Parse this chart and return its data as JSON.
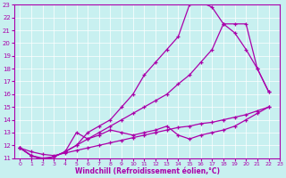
{
  "xlabel": "Windchill (Refroidissement éolien,°C)",
  "bg_color": "#c8f0f0",
  "line_color": "#aa00aa",
  "xlim": [
    -0.5,
    23
  ],
  "ylim": [
    11,
    23
  ],
  "xticks": [
    0,
    1,
    2,
    3,
    4,
    5,
    6,
    7,
    8,
    9,
    10,
    11,
    12,
    13,
    14,
    15,
    16,
    17,
    18,
    19,
    20,
    21,
    22,
    23
  ],
  "yticks": [
    11,
    12,
    13,
    14,
    15,
    16,
    17,
    18,
    19,
    20,
    21,
    22,
    23
  ],
  "lines": [
    {
      "x": [
        0,
        1,
        2,
        3,
        4,
        5,
        6,
        7,
        8,
        9,
        10,
        11,
        12,
        13,
        14,
        15,
        16,
        17,
        18,
        19,
        20,
        21,
        22
      ],
      "y": [
        11.8,
        11.5,
        11.3,
        11.2,
        11.4,
        11.6,
        11.8,
        12.0,
        12.2,
        12.4,
        12.6,
        12.8,
        13.0,
        13.2,
        13.4,
        13.5,
        13.7,
        13.8,
        14.0,
        14.2,
        14.4,
        14.7,
        15.0
      ]
    },
    {
      "x": [
        0,
        1,
        2,
        3,
        4,
        5,
        6,
        7,
        8,
        9,
        10,
        11,
        12,
        13,
        14,
        15,
        16,
        17,
        18,
        19,
        20,
        21,
        22
      ],
      "y": [
        11.8,
        11.2,
        10.9,
        11.1,
        11.5,
        13.0,
        12.5,
        12.8,
        13.2,
        13.0,
        12.8,
        13.0,
        13.2,
        13.5,
        12.8,
        12.5,
        12.8,
        13.0,
        13.2,
        13.5,
        14.0,
        14.5,
        15.0
      ]
    },
    {
      "x": [
        0,
        1,
        2,
        3,
        4,
        5,
        6,
        7,
        8,
        9,
        10,
        11,
        12,
        13,
        14,
        15,
        16,
        17,
        18,
        19,
        20,
        21,
        22
      ],
      "y": [
        11.8,
        11.2,
        11.0,
        11.1,
        11.5,
        12.0,
        12.5,
        13.0,
        13.5,
        14.0,
        14.5,
        15.0,
        15.5,
        16.0,
        16.8,
        17.5,
        18.5,
        19.5,
        21.5,
        21.5,
        21.5,
        18.0,
        16.2
      ]
    },
    {
      "x": [
        0,
        1,
        2,
        3,
        4,
        5,
        6,
        7,
        8,
        9,
        10,
        11,
        12,
        13,
        14,
        15,
        16,
        17,
        18,
        19,
        20,
        21,
        22
      ],
      "y": [
        11.8,
        11.2,
        10.9,
        11.1,
        11.5,
        12.0,
        13.0,
        13.5,
        14.0,
        15.0,
        16.0,
        17.5,
        18.5,
        19.5,
        20.5,
        23.0,
        23.2,
        22.8,
        21.5,
        20.8,
        19.5,
        18.0,
        16.2
      ]
    }
  ]
}
